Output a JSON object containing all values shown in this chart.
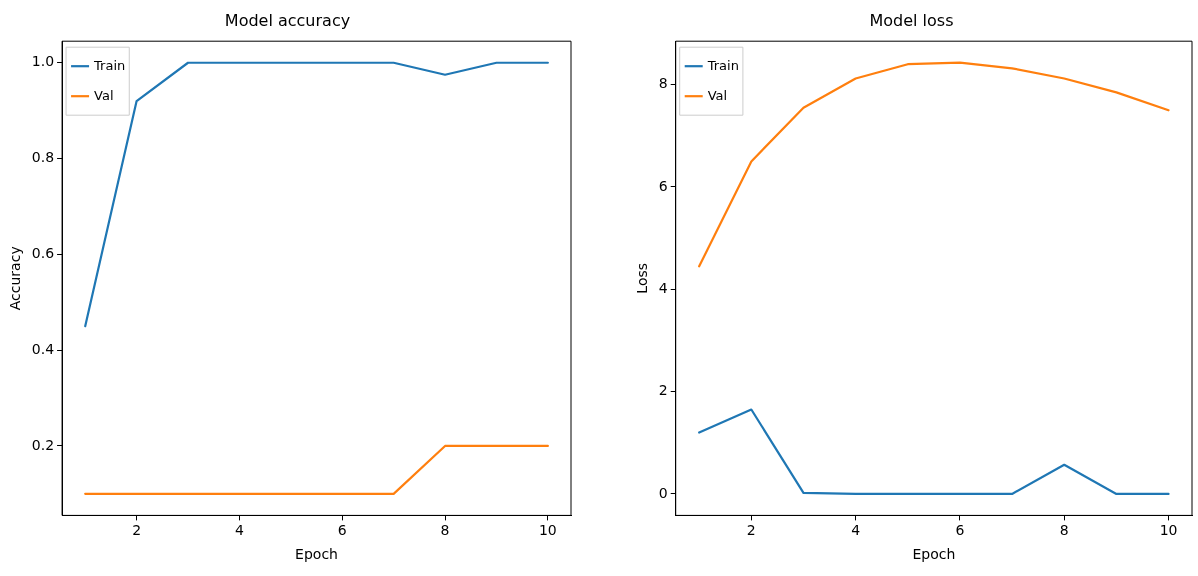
{
  "chart_data": [
    {
      "type": "line",
      "title": "Model accuracy",
      "xlabel": "Epoch",
      "ylabel": "Accuracy",
      "x": [
        1,
        2,
        3,
        4,
        5,
        6,
        7,
        8,
        9,
        10
      ],
      "xlim": [
        0.55,
        10.45
      ],
      "xticks": [
        2,
        4,
        6,
        8,
        10
      ],
      "ylim": [
        0.055,
        1.045
      ],
      "yticks": [
        0.2,
        0.4,
        0.6,
        0.8,
        {
          "value": 1,
          "label": "1.0"
        }
      ],
      "grid": false,
      "legend": "top left",
      "marker": "none",
      "line_style": "solid",
      "series": [
        {
          "name": "Train",
          "color": "#1f77b4",
          "values": [
            0.45,
            0.92,
            1.0,
            1.0,
            1.0,
            1.0,
            1.0,
            0.975,
            1.0,
            1.0
          ]
        },
        {
          "name": "Val",
          "color": "#ff7f0e",
          "values": [
            0.1,
            0.1,
            0.1,
            0.1,
            0.1,
            0.1,
            0.1,
            0.2,
            0.2,
            0.2
          ]
        }
      ]
    },
    {
      "type": "line",
      "title": "Model loss",
      "xlabel": "Epoch",
      "ylabel": "Loss",
      "x": [
        1,
        2,
        3,
        4,
        5,
        6,
        7,
        8,
        9,
        10
      ],
      "xlim": [
        0.55,
        10.45
      ],
      "xticks": [
        2,
        4,
        6,
        8,
        10
      ],
      "ylim": [
        -0.42,
        8.85
      ],
      "yticks": [
        0,
        2,
        4,
        6,
        8
      ],
      "grid": false,
      "legend": "top left",
      "marker": "none",
      "line_style": "solid",
      "series": [
        {
          "name": "Train",
          "color": "#1f77b4",
          "values": [
            1.2,
            1.65,
            0.02,
            0.0,
            0.0,
            0.0,
            0.0,
            0.57,
            0.0,
            0.0
          ]
        },
        {
          "name": "Val",
          "color": "#ff7f0e",
          "values": [
            4.45,
            6.5,
            7.55,
            8.12,
            8.4,
            8.43,
            8.32,
            8.12,
            7.85,
            7.5
          ]
        }
      ]
    }
  ]
}
